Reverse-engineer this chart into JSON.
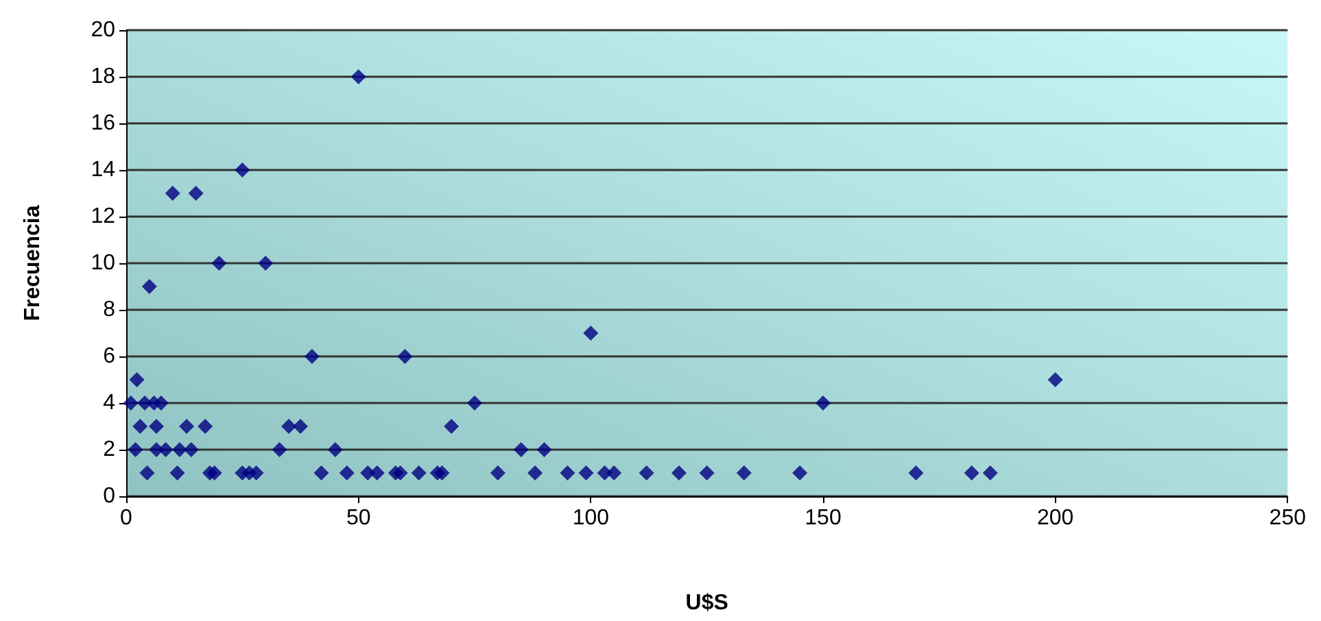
{
  "chart_data": {
    "type": "scatter",
    "xlabel": "U$S",
    "ylabel": "Frecuencia",
    "marker": "diamond",
    "grid": "y",
    "xlim": [
      0,
      250
    ],
    "xticks": [
      0,
      50,
      100,
      150,
      200,
      250
    ],
    "ylim": [
      0,
      20
    ],
    "yticks": [
      0,
      2,
      4,
      6,
      8,
      10,
      12,
      14,
      16,
      18,
      20
    ],
    "series": [
      {
        "color": "#000080",
        "x": [
          4.5,
          11,
          18,
          19,
          25,
          26.5,
          28,
          42,
          47.5,
          52,
          54,
          58,
          59,
          63,
          67,
          68,
          80,
          88,
          95,
          99,
          103,
          105,
          112,
          119,
          125,
          133,
          145,
          170,
          182,
          186,
          2,
          6.5,
          8.5,
          11.5,
          14,
          33,
          45,
          85,
          90,
          3,
          6.5,
          13,
          17,
          35,
          37.5,
          70,
          1,
          4,
          6,
          7.5,
          75,
          150,
          2.3,
          200,
          40,
          60,
          100,
          5,
          20,
          30,
          10,
          15,
          25,
          50
        ],
        "values": [
          1,
          1,
          1,
          1,
          1,
          1,
          1,
          1,
          1,
          1,
          1,
          1,
          1,
          1,
          1,
          1,
          1,
          1,
          1,
          1,
          1,
          1,
          1,
          1,
          1,
          1,
          1,
          1,
          1,
          1,
          2,
          2,
          2,
          2,
          2,
          2,
          2,
          2,
          2,
          3,
          3,
          3,
          3,
          3,
          3,
          3,
          4,
          4,
          4,
          4,
          4,
          4,
          5,
          5,
          6,
          6,
          7,
          9,
          10,
          10,
          13,
          13,
          14,
          18
        ]
      }
    ]
  }
}
